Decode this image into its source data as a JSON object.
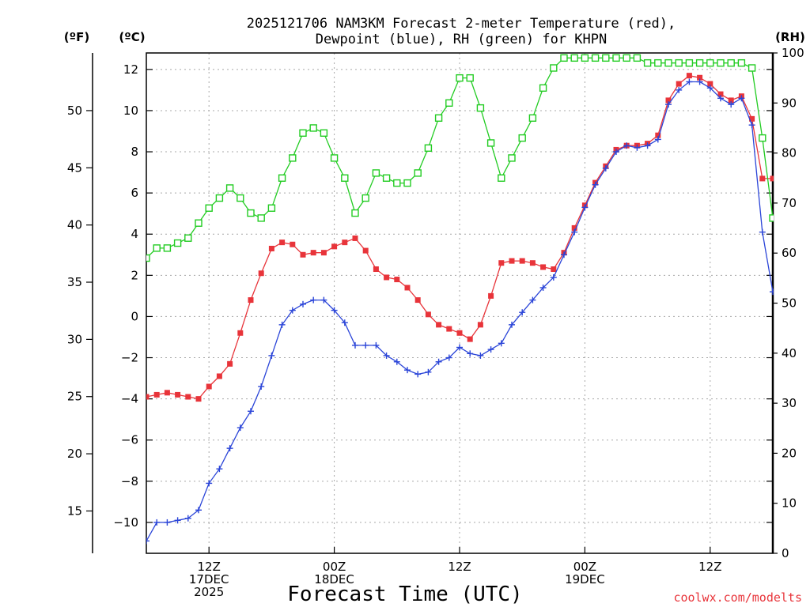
{
  "chart_data": {
    "type": "line",
    "title_line1": "2025121706 NAM3KM Forecast 2-meter Temperature (red),",
    "title_line2": "Dewpoint (blue), RH (green) for KHPN",
    "xlabel": "Forecast Time (UTC)",
    "credit": "coolwx.com/modelts",
    "units": {
      "fahrenheit": "(ºF)",
      "celsius": "(ºC)",
      "rh": "(RH)"
    },
    "celsius_axis": {
      "ylim": [
        -11.5,
        12.8
      ],
      "ticks": [
        -10,
        -8,
        -6,
        -4,
        -2,
        0,
        2,
        4,
        6,
        8,
        10,
        12
      ],
      "tick_labels": [
        "−10",
        "−8",
        "−6",
        "−4",
        "−2",
        "0",
        "2",
        "4",
        "6",
        "8",
        "10",
        "12"
      ]
    },
    "fahrenheit_axis": {
      "ticks": [
        15,
        20,
        25,
        30,
        35,
        40,
        45,
        50
      ],
      "tick_labels": [
        "15",
        "20",
        "25",
        "30",
        "35",
        "40",
        "45",
        "50"
      ]
    },
    "rh_axis": {
      "ylim": [
        0,
        100
      ],
      "ticks": [
        0,
        10,
        20,
        30,
        40,
        50,
        60,
        70,
        80,
        90,
        100
      ],
      "tick_labels": [
        "0",
        "10",
        "20",
        "30",
        "40",
        "50",
        "60",
        "70",
        "80",
        "90",
        "100"
      ]
    },
    "x_axis": {
      "range_hours": [
        0,
        60
      ],
      "ticks": [
        {
          "hour": 6,
          "lines": [
            "12Z",
            "17DEC",
            "2025"
          ]
        },
        {
          "hour": 18,
          "lines": [
            "00Z",
            "18DEC"
          ]
        },
        {
          "hour": 30,
          "lines": [
            "12Z"
          ]
        },
        {
          "hour": 42,
          "lines": [
            "00Z",
            "19DEC"
          ]
        },
        {
          "hour": 54,
          "lines": [
            "12Z"
          ]
        }
      ]
    },
    "series": [
      {
        "name": "2-meter Temperature",
        "units": "°C",
        "color": "#e8343a",
        "marker": "filled-square",
        "points": [
          [
            0,
            -3.9
          ],
          [
            1,
            -3.8
          ],
          [
            2,
            -3.7
          ],
          [
            3,
            -3.8
          ],
          [
            4,
            -3.9
          ],
          [
            5,
            -4.0
          ],
          [
            6,
            -3.4
          ],
          [
            7,
            -2.9
          ],
          [
            8,
            -2.3
          ],
          [
            9,
            -0.8
          ],
          [
            10,
            0.8
          ],
          [
            11,
            2.1
          ],
          [
            12,
            3.3
          ],
          [
            13,
            3.6
          ],
          [
            14,
            3.5
          ],
          [
            15,
            3.0
          ],
          [
            16,
            3.1
          ],
          [
            17,
            3.1
          ],
          [
            18,
            3.4
          ],
          [
            19,
            3.6
          ],
          [
            20,
            3.8
          ],
          [
            21,
            3.2
          ],
          [
            22,
            2.3
          ],
          [
            23,
            1.9
          ],
          [
            24,
            1.8
          ],
          [
            25,
            1.4
          ],
          [
            26,
            0.8
          ],
          [
            27,
            0.1
          ],
          [
            28,
            -0.4
          ],
          [
            29,
            -0.6
          ],
          [
            30,
            -0.8
          ],
          [
            31,
            -1.1
          ],
          [
            32,
            -0.4
          ],
          [
            33,
            1.0
          ],
          [
            34,
            2.6
          ],
          [
            35,
            2.7
          ],
          [
            36,
            2.7
          ],
          [
            37,
            2.6
          ],
          [
            38,
            2.4
          ],
          [
            39,
            2.3
          ],
          [
            40,
            3.1
          ],
          [
            41,
            4.3
          ],
          [
            42,
            5.4
          ],
          [
            43,
            6.5
          ],
          [
            44,
            7.3
          ],
          [
            45,
            8.1
          ],
          [
            46,
            8.3
          ],
          [
            47,
            8.3
          ],
          [
            48,
            8.4
          ],
          [
            49,
            8.8
          ],
          [
            50,
            10.5
          ],
          [
            51,
            11.3
          ],
          [
            52,
            11.7
          ],
          [
            53,
            11.6
          ],
          [
            54,
            11.3
          ],
          [
            55,
            10.8
          ],
          [
            56,
            10.5
          ],
          [
            57,
            10.7
          ],
          [
            58,
            9.6
          ],
          [
            59,
            6.7
          ],
          [
            60,
            6.7
          ]
        ]
      },
      {
        "name": "Dewpoint",
        "units": "°C",
        "color": "#2b45d8",
        "marker": "plus",
        "points": [
          [
            0,
            -10.9
          ],
          [
            1,
            -10.0
          ],
          [
            2,
            -10.0
          ],
          [
            3,
            -9.9
          ],
          [
            4,
            -9.8
          ],
          [
            5,
            -9.4
          ],
          [
            6,
            -8.1
          ],
          [
            7,
            -7.4
          ],
          [
            8,
            -6.4
          ],
          [
            9,
            -5.4
          ],
          [
            10,
            -4.6
          ],
          [
            11,
            -3.4
          ],
          [
            12,
            -1.9
          ],
          [
            13,
            -0.4
          ],
          [
            14,
            0.3
          ],
          [
            15,
            0.6
          ],
          [
            16,
            0.8
          ],
          [
            17,
            0.8
          ],
          [
            18,
            0.3
          ],
          [
            19,
            -0.3
          ],
          [
            20,
            -1.4
          ],
          [
            21,
            -1.4
          ],
          [
            22,
            -1.4
          ],
          [
            23,
            -1.9
          ],
          [
            24,
            -2.2
          ],
          [
            25,
            -2.6
          ],
          [
            26,
            -2.8
          ],
          [
            27,
            -2.7
          ],
          [
            28,
            -2.2
          ],
          [
            29,
            -2.0
          ],
          [
            30,
            -1.5
          ],
          [
            31,
            -1.8
          ],
          [
            32,
            -1.9
          ],
          [
            33,
            -1.6
          ],
          [
            34,
            -1.3
          ],
          [
            35,
            -0.4
          ],
          [
            36,
            0.2
          ],
          [
            37,
            0.8
          ],
          [
            38,
            1.4
          ],
          [
            39,
            1.9
          ],
          [
            40,
            3.0
          ],
          [
            41,
            4.1
          ],
          [
            42,
            5.3
          ],
          [
            43,
            6.4
          ],
          [
            44,
            7.2
          ],
          [
            45,
            8.0
          ],
          [
            46,
            8.3
          ],
          [
            47,
            8.2
          ],
          [
            48,
            8.3
          ],
          [
            49,
            8.6
          ],
          [
            50,
            10.3
          ],
          [
            51,
            11.0
          ],
          [
            52,
            11.4
          ],
          [
            53,
            11.4
          ],
          [
            54,
            11.1
          ],
          [
            55,
            10.6
          ],
          [
            56,
            10.3
          ],
          [
            57,
            10.6
          ],
          [
            58,
            9.3
          ],
          [
            59,
            4.1
          ],
          [
            60,
            1.2
          ]
        ]
      },
      {
        "name": "RH",
        "units": "%",
        "color": "#22cc22",
        "marker": "open-square",
        "points": [
          [
            0,
            59
          ],
          [
            1,
            61
          ],
          [
            2,
            61
          ],
          [
            3,
            62
          ],
          [
            4,
            63
          ],
          [
            5,
            66
          ],
          [
            6,
            69
          ],
          [
            7,
            71
          ],
          [
            8,
            73
          ],
          [
            9,
            71
          ],
          [
            10,
            68
          ],
          [
            11,
            67
          ],
          [
            12,
            69
          ],
          [
            13,
            75
          ],
          [
            14,
            79
          ],
          [
            15,
            84
          ],
          [
            16,
            85
          ],
          [
            17,
            84
          ],
          [
            18,
            79
          ],
          [
            19,
            75
          ],
          [
            20,
            68
          ],
          [
            21,
            71
          ],
          [
            22,
            76
          ],
          [
            23,
            75
          ],
          [
            24,
            74
          ],
          [
            25,
            74
          ],
          [
            26,
            76
          ],
          [
            27,
            81
          ],
          [
            28,
            87
          ],
          [
            29,
            90
          ],
          [
            30,
            95
          ],
          [
            31,
            95
          ],
          [
            32,
            89
          ],
          [
            33,
            82
          ],
          [
            34,
            75
          ],
          [
            35,
            79
          ],
          [
            36,
            83
          ],
          [
            37,
            87
          ],
          [
            38,
            93
          ],
          [
            39,
            97
          ],
          [
            40,
            99
          ],
          [
            41,
            99
          ],
          [
            42,
            99
          ],
          [
            43,
            99
          ],
          [
            44,
            99
          ],
          [
            45,
            99
          ],
          [
            46,
            99
          ],
          [
            47,
            99
          ],
          [
            48,
            98
          ],
          [
            49,
            98
          ],
          [
            50,
            98
          ],
          [
            51,
            98
          ],
          [
            52,
            98
          ],
          [
            53,
            98
          ],
          [
            54,
            98
          ],
          [
            55,
            98
          ],
          [
            56,
            98
          ],
          [
            57,
            98
          ],
          [
            58,
            97
          ],
          [
            59,
            83
          ],
          [
            60,
            67
          ]
        ]
      }
    ]
  }
}
